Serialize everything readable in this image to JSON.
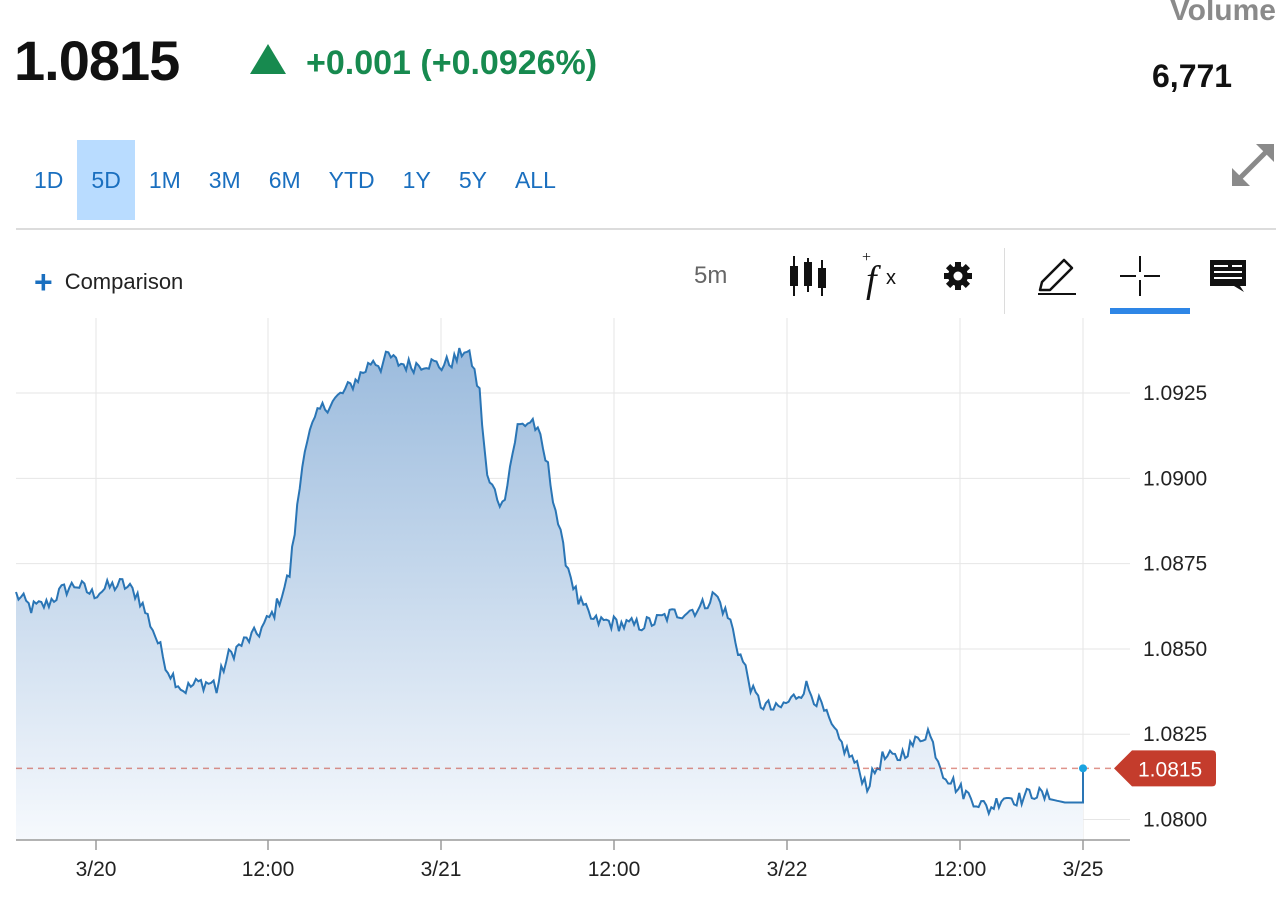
{
  "quote": {
    "price": "1.0815",
    "change": "+0.001 (+0.0926%)",
    "volume_label": "Volume",
    "volume_value": "6,771"
  },
  "ranges": [
    "1D",
    "5D",
    "1M",
    "3M",
    "6M",
    "YTD",
    "1Y",
    "5Y",
    "ALL"
  ],
  "active_range": "5D",
  "toolbar": {
    "comparison_label": "Comparison",
    "interval": "5m",
    "icons": [
      "candlestick-icon",
      "function-icon",
      "gear-icon",
      "pencil-icon",
      "crosshair-icon",
      "comment-icon"
    ],
    "active_tool": "crosshair-icon"
  },
  "colors": {
    "up": "#178a4f",
    "line": "#2a75b5",
    "area_top": "#9bbbdd",
    "area_bottom": "#f6f9fd",
    "last_price": "#c43c2c",
    "accent": "#2e86e6"
  },
  "chart_data": {
    "type": "area",
    "x_ticks": [
      "3/20",
      "12:00",
      "3/21",
      "12:00",
      "3/22",
      "12:00",
      "3/25"
    ],
    "y_ticks": [
      "1.0925",
      "1.0900",
      "1.0875",
      "1.0850",
      "1.0825",
      "1.0800"
    ],
    "ylim": [
      1.0794,
      1.0947
    ],
    "last_price": 1.0815,
    "last_price_label": "1.0815",
    "grid": true,
    "series": [
      {
        "t": [
          0,
          0.5,
          1,
          2,
          3,
          4,
          5,
          6,
          7,
          8,
          9,
          10,
          11,
          12,
          13,
          13.2,
          13.5,
          14,
          15,
          16,
          17,
          18,
          19,
          20,
          21,
          22,
          23,
          23.5,
          24,
          24.5,
          25,
          26,
          27,
          28,
          29,
          29.5,
          30,
          30.5,
          31,
          32,
          33,
          34,
          34.5,
          35,
          35.5,
          36,
          37,
          38,
          39,
          40,
          41,
          42,
          43,
          44,
          45,
          46,
          47,
          47.5,
          48,
          48.5,
          49,
          50,
          51,
          52,
          53,
          54,
          55,
          56,
          57,
          58,
          59,
          60,
          61,
          62,
          63,
          64,
          65,
          66,
          67,
          68,
          69,
          70,
          70.2
        ],
        "y": [
          1.0866,
          1.0864,
          1.0862,
          1.0863,
          1.0867,
          1.0869,
          1.0866,
          1.0868,
          1.0869,
          1.0866,
          1.0856,
          1.0844,
          1.0838,
          1.084,
          1.084,
          1.0838,
          1.0843,
          1.0848,
          1.0852,
          1.0855,
          1.0861,
          1.0872,
          1.091,
          1.092,
          1.0923,
          1.0927,
          1.0932,
          1.0935,
          1.0933,
          1.0936,
          1.0934,
          1.0933,
          1.0934,
          1.0933,
          1.0935,
          1.0938,
          1.0934,
          1.0925,
          1.09,
          1.0892,
          1.0915,
          1.0917,
          1.0911,
          1.0903,
          1.0891,
          1.0879,
          1.0864,
          1.0858,
          1.0858,
          1.0857,
          1.0857,
          1.0858,
          1.086,
          1.0861,
          1.0862,
          1.0866,
          1.0858,
          1.085,
          1.0844,
          1.0837,
          1.0834,
          1.0832,
          1.0835,
          1.0839,
          1.0833,
          1.0824,
          1.0818,
          1.081,
          1.0818,
          1.0818,
          1.0822,
          1.0826,
          1.0814,
          1.0809,
          1.0806,
          1.0803,
          1.0807,
          1.0806,
          1.0808,
          1.0806,
          1.0805,
          1.0805,
          1.0815
        ]
      }
    ]
  }
}
